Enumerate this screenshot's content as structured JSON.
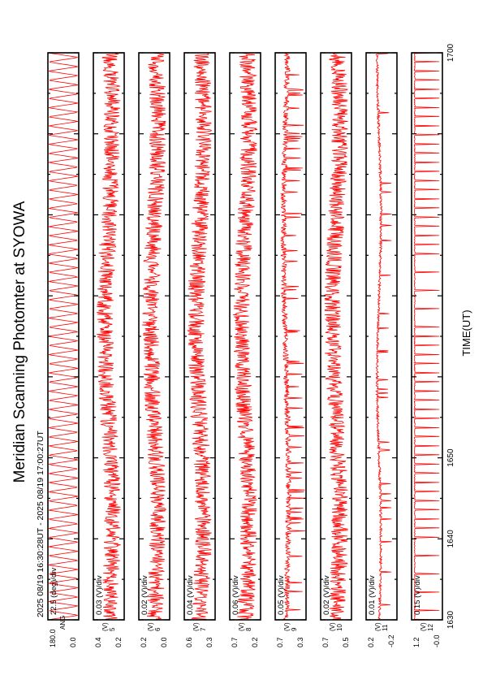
{
  "title": "Meridian Scanning Photomter at SYOWA",
  "subtitle": "2025 08/19 16:30:28UT - 2025 08/19 17:00:27UT",
  "colors": {
    "trace": "#ff0000",
    "axis": "#000000"
  },
  "chart_data": {
    "type": "line",
    "orientation": "rotated-90-ccw",
    "xlabel": "TIME(UT)",
    "xlim": [
      1630,
      1700
    ],
    "x_ticks": [
      "1630",
      "1640",
      "1650",
      "1700"
    ],
    "grid": false,
    "panels": [
      {
        "scale": "22.5 (deg)/div",
        "unit": "",
        "ylim": [
          0.0,
          180.0
        ],
        "y_ticks": [
          "180.0",
          "0.0"
        ],
        "label": "ANG",
        "pattern": "sawtooth"
      },
      {
        "scale": "0.03 (V)/div",
        "unit": "(V)",
        "ylim": [
          0.2,
          0.4
        ],
        "y_ticks": [
          "0.4",
          "0.2"
        ],
        "label": "5",
        "pattern": "noise"
      },
      {
        "scale": "0.02 (V)/div",
        "unit": "(V)",
        "ylim": [
          0.0,
          0.2
        ],
        "y_ticks": [
          "0.2",
          "0.0"
        ],
        "label": "6",
        "pattern": "noise"
      },
      {
        "scale": "0.04 (V)/div",
        "unit": "(V)",
        "ylim": [
          0.3,
          0.6
        ],
        "y_ticks": [
          "0.6",
          "0.3"
        ],
        "label": "7",
        "pattern": "noise"
      },
      {
        "scale": "0.06 (V)/div",
        "unit": "(V)",
        "ylim": [
          0.2,
          0.7
        ],
        "y_ticks": [
          "0.7",
          "0.2"
        ],
        "label": "8",
        "pattern": "noise"
      },
      {
        "scale": "0.05 (V)/div",
        "unit": "(V)",
        "ylim": [
          0.3,
          0.7
        ],
        "y_ticks": [
          "0.7",
          "0.3"
        ],
        "label": "9",
        "pattern": "spiky"
      },
      {
        "scale": "0.02 (V)/div",
        "unit": "(V)",
        "ylim": [
          0.5,
          0.7
        ],
        "y_ticks": [
          "0.7",
          "0.5"
        ],
        "label": "10",
        "pattern": "noise"
      },
      {
        "scale": "0.01 (V)/div",
        "unit": "(V)",
        "ylim": [
          -0.2,
          0.2
        ],
        "y_ticks": [
          "0.2",
          "-0.2"
        ],
        "label": "11",
        "pattern": "smooth"
      },
      {
        "scale": "0.15 (V)/div",
        "unit": "(V)",
        "ylim": [
          -0.0,
          1.2
        ],
        "y_ticks": [
          "1.2",
          "-0.0"
        ],
        "label": "12",
        "pattern": "pulses"
      }
    ]
  }
}
